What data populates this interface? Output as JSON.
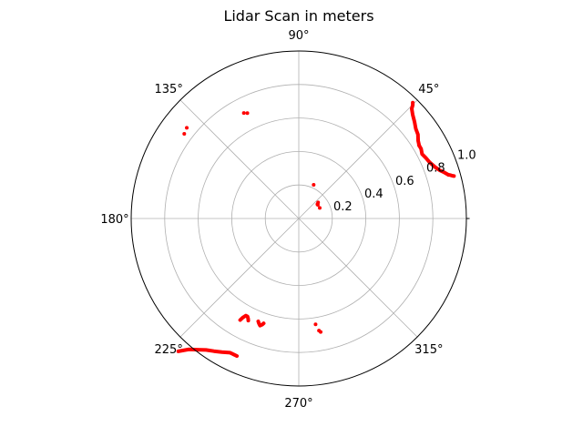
{
  "chart_data": {
    "type": "scatter",
    "projection": "polar",
    "title": "Lidar Scan in meters",
    "theta_ticks": [
      0,
      45,
      90,
      135,
      180,
      225,
      270,
      315
    ],
    "theta_tick_labels": [
      "",
      "45°",
      "90°",
      "135°",
      "180°",
      "225°",
      "270°",
      "315°"
    ],
    "r_ticks": [
      0.2,
      0.4,
      0.6,
      0.8,
      1.0
    ],
    "r_tick_labels": [
      "0.2",
      "0.4",
      "0.6",
      "0.8",
      "1.0"
    ],
    "rlim": [
      0,
      1.0
    ],
    "grid": true,
    "marker_color": "#ff0000",
    "series": [
      {
        "segments": [
          [
            [
              31.2,
              0.84
            ],
            [
              33.1,
              0.85
            ],
            [
              35.2,
              0.87
            ],
            [
              37.5,
              0.88
            ],
            [
              39.9,
              0.9
            ],
            [
              42.4,
              0.92
            ],
            [
              44.2,
              0.94
            ],
            [
              44.9,
              0.96
            ],
            [
              45.5,
              0.97
            ]
          ],
          [
            [
              16.3,
              0.93
            ],
            [
              17.6,
              0.91
            ],
            [
              18.8,
              0.89
            ],
            [
              20.6,
              0.87
            ],
            [
              23.2,
              0.85
            ],
            [
              25.5,
              0.84
            ],
            [
              27.6,
              0.83
            ],
            [
              29.7,
              0.84
            ],
            [
              31.4,
              0.84
            ]
          ],
          [
            [
              15.3,
              0.96
            ],
            [
              15.6,
              0.95
            ],
            [
              16.0,
              0.94
            ],
            [
              16.3,
              0.93
            ]
          ],
          [
            [
              227.8,
              1.07
            ],
            [
              230.0,
              1.02
            ],
            [
              232.3,
              0.99
            ],
            [
              234.8,
              0.96
            ],
            [
              237.4,
              0.94
            ],
            [
              240.1,
              0.92
            ],
            [
              242.9,
              0.9
            ],
            [
              245.8,
              0.9
            ]
          ],
          [
            [
              240.0,
              0.7
            ],
            [
              240.5,
              0.68
            ],
            [
              241.4,
              0.66
            ],
            [
              242.4,
              0.66
            ],
            [
              243.2,
              0.67
            ],
            [
              243.7,
              0.68
            ]
          ],
          [
            [
              248.5,
              0.66
            ],
            [
              249.2,
              0.67
            ],
            [
              250.1,
              0.68
            ],
            [
              251.0,
              0.67
            ],
            [
              251.5,
              0.66
            ]
          ]
        ],
        "points": [
          [
            26.8,
            0.14
          ],
          [
            35.7,
            0.14
          ],
          [
            37.5,
            0.14
          ],
          [
            39.8,
            0.15
          ],
          [
            66.2,
            0.22
          ],
          [
            141.0,
            0.86
          ],
          [
            143.5,
            0.85
          ],
          [
            116.0,
            0.7
          ],
          [
            117.5,
            0.71
          ],
          [
            279.0,
            0.64
          ],
          [
            280.2,
            0.68
          ],
          [
            280.9,
            0.69
          ]
        ]
      }
    ]
  }
}
